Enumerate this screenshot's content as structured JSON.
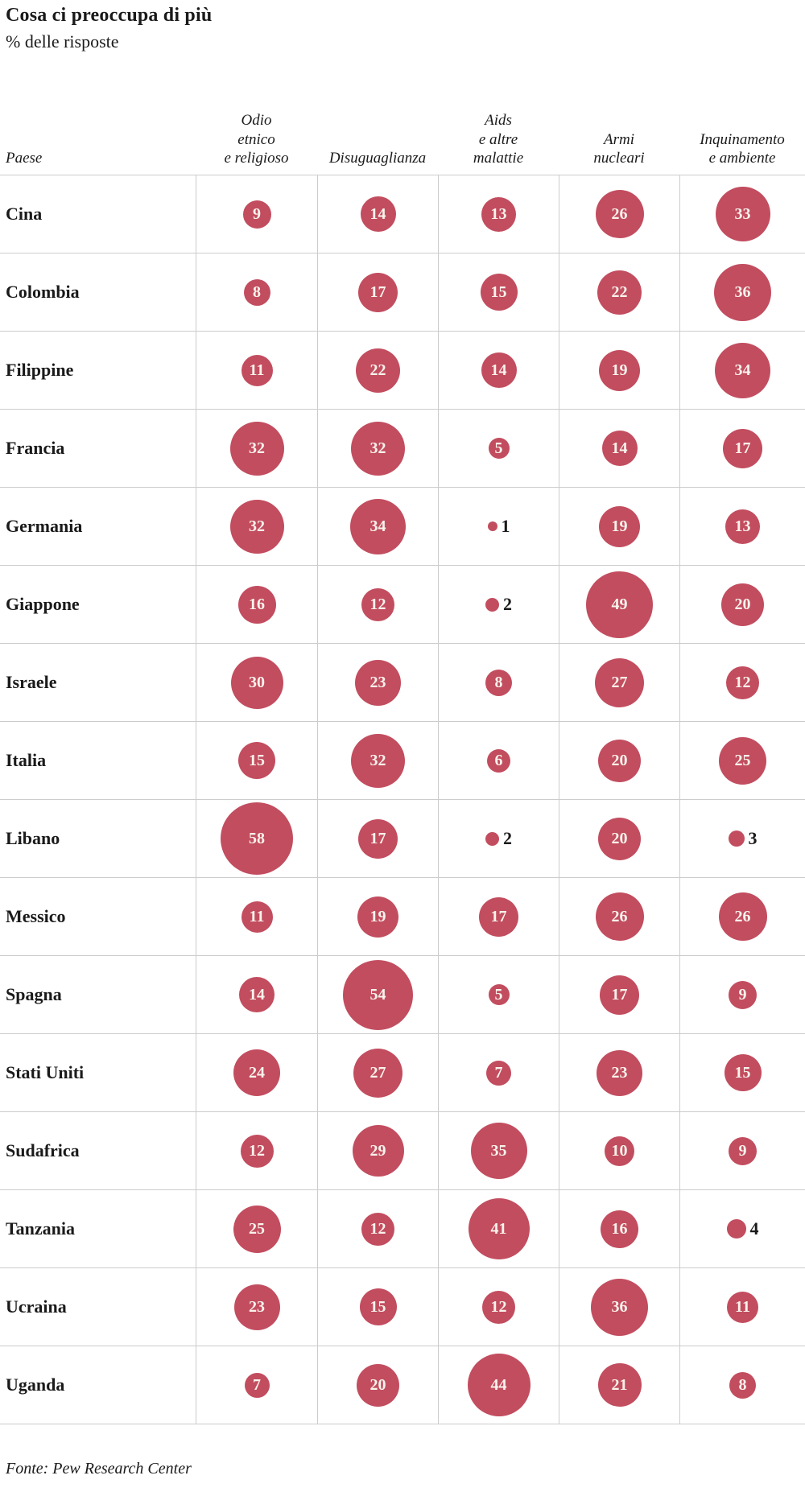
{
  "title": "Cosa ci preoccupa di più",
  "subtitle": "% delle risposte",
  "source": "Fonte: Pew Research Center",
  "colors": {
    "bubble": "#c24d5f",
    "bubble_text": "#f8f3ec",
    "grid_line": "#cccccc",
    "text": "#1a1a1a"
  },
  "chart_data": {
    "type": "bubble-table",
    "title": "Cosa ci preoccupa di più",
    "subtitle": "% delle risposte",
    "unit": "% delle risposte",
    "row_header": "Paese",
    "columns": [
      {
        "label": "Odio etnico e religioso",
        "lines": "Odio\netnico\ne religioso"
      },
      {
        "label": "Disuguaglianza",
        "lines": "Disuguaglianza"
      },
      {
        "label": "Aids e altre malattie",
        "lines": "Aids\ne altre\nmalattie"
      },
      {
        "label": "Armi nucleari",
        "lines": "Armi\nnucleari"
      },
      {
        "label": "Inquinamento e ambiente",
        "lines": "Inquinamento\ne ambiente"
      }
    ],
    "rows": [
      {
        "country": "Cina",
        "values": [
          9,
          14,
          13,
          26,
          33
        ]
      },
      {
        "country": "Colombia",
        "values": [
          8,
          17,
          15,
          22,
          36
        ]
      },
      {
        "country": "Filippine",
        "values": [
          11,
          22,
          14,
          19,
          34
        ]
      },
      {
        "country": "Francia",
        "values": [
          32,
          32,
          5,
          14,
          17
        ]
      },
      {
        "country": "Germania",
        "values": [
          32,
          34,
          1,
          19,
          13
        ]
      },
      {
        "country": "Giappone",
        "values": [
          16,
          12,
          2,
          49,
          20
        ]
      },
      {
        "country": "Israele",
        "values": [
          30,
          23,
          8,
          27,
          12
        ]
      },
      {
        "country": "Italia",
        "values": [
          15,
          32,
          6,
          20,
          25
        ]
      },
      {
        "country": "Libano",
        "values": [
          58,
          17,
          2,
          20,
          3
        ]
      },
      {
        "country": "Messico",
        "values": [
          11,
          19,
          17,
          26,
          26
        ]
      },
      {
        "country": "Spagna",
        "values": [
          14,
          54,
          5,
          17,
          9
        ]
      },
      {
        "country": "Stati Uniti",
        "values": [
          24,
          27,
          7,
          23,
          15
        ]
      },
      {
        "country": "Sudafrica",
        "values": [
          12,
          29,
          35,
          10,
          9
        ]
      },
      {
        "country": "Tanzania",
        "values": [
          25,
          12,
          41,
          16,
          4
        ]
      },
      {
        "country": "Ucraina",
        "values": [
          23,
          15,
          12,
          36,
          11
        ]
      },
      {
        "country": "Uganda",
        "values": [
          7,
          20,
          44,
          21,
          8
        ]
      }
    ],
    "bubble_scale": "diameter_px = 11.8 * sqrt(value)",
    "label_outside_if_value_below": 5,
    "legend": "none",
    "grid": "row and column separator lines"
  }
}
